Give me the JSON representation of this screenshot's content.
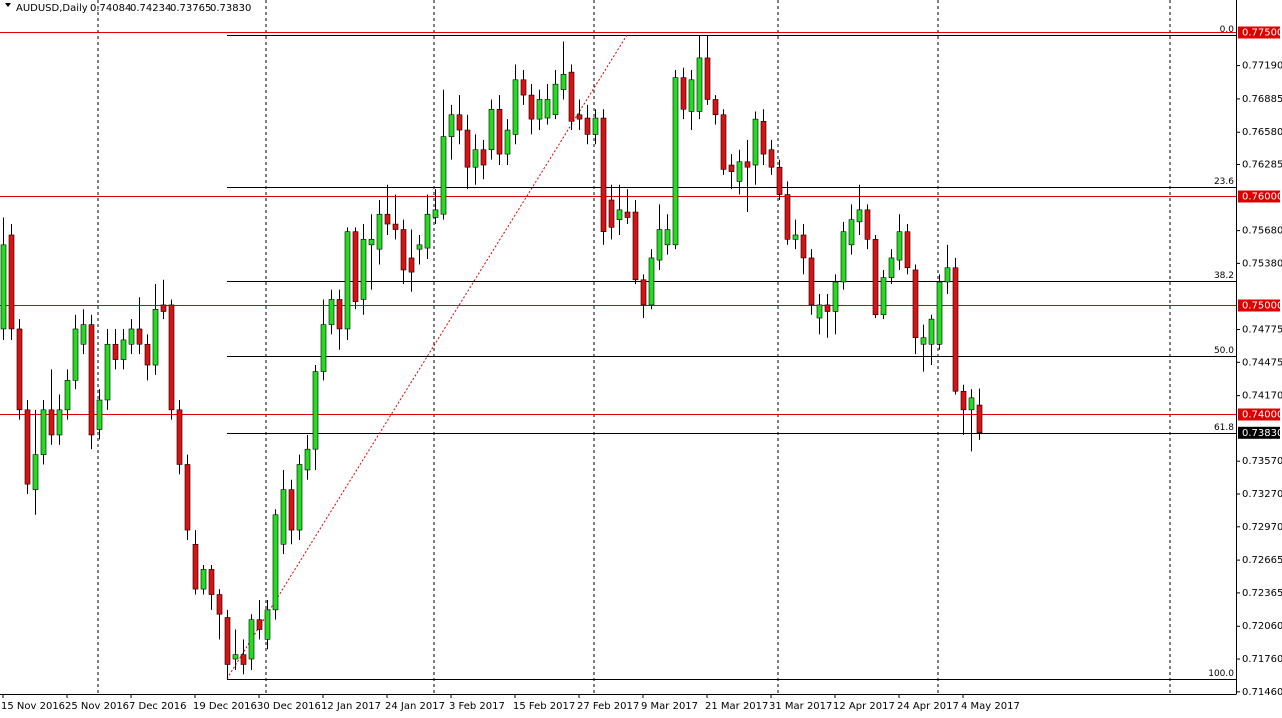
{
  "chart_data": {
    "type": "candlestick",
    "header": {
      "symbol": "AUDUSD,Daily",
      "ohlc": [
        "0.74084",
        "0.74234",
        "0.73765",
        "0.73830"
      ]
    },
    "categories": [
      "15 Nov 2016",
      null,
      null,
      null,
      null,
      null,
      null,
      null,
      "25 Nov 2016",
      null,
      null,
      null,
      null,
      null,
      null,
      null,
      "7 Dec 2016",
      null,
      null,
      null,
      null,
      null,
      null,
      null,
      "19 Dec 2016",
      null,
      null,
      null,
      null,
      null,
      null,
      null,
      "30 Dec 2016",
      null,
      null,
      null,
      null,
      null,
      null,
      null,
      "12 Jan 2017",
      null,
      null,
      null,
      null,
      null,
      null,
      null,
      "24 Jan 2017",
      null,
      null,
      null,
      null,
      null,
      null,
      null,
      "3 Feb 2017",
      null,
      null,
      null,
      null,
      null,
      null,
      null,
      "15 Feb 2017",
      null,
      null,
      null,
      null,
      null,
      null,
      null,
      "27 Feb 2017",
      null,
      null,
      null,
      null,
      null,
      null,
      null,
      "9 Mar 2017",
      null,
      null,
      null,
      null,
      null,
      null,
      null,
      "21 Mar 2017",
      null,
      null,
      null,
      null,
      null,
      null,
      null,
      "31 Mar 2017",
      null,
      null,
      null,
      null,
      null,
      null,
      null,
      "12 Apr 2017",
      null,
      null,
      null,
      null,
      null,
      null,
      null,
      "24 Apr 2017",
      null,
      null,
      null,
      null,
      null,
      null,
      null,
      "4 May 2017",
      null,
      null
    ],
    "open": [
      0.7478,
      0.7564,
      0.7478,
      0.7404,
      0.7331,
      0.7363,
      0.7404,
      0.7381,
      0.7404,
      0.7431,
      0.7464,
      0.7482,
      0.7386,
      0.7413,
      0.7464,
      0.745,
      0.7464,
      0.7478,
      0.7464,
      0.7445,
      0.75,
      0.75,
      0.7404,
      0.7354,
      0.7281,
      0.724,
      0.7258,
      0.7235,
      0.7214,
      0.7176,
      0.718,
      0.7176,
      0.7212,
      0.7194,
      0.7221,
      0.7281,
      0.7331,
      0.7294,
      0.7349,
      0.7368,
      0.7439,
      0.7482,
      0.7505,
      0.7478,
      0.7567,
      0.7505,
      0.7555,
      0.7551,
      0.7583,
      0.7574,
      0.7569,
      0.7543,
      0.7551,
      0.7552,
      0.758,
      0.7583,
      0.7654,
      0.7674,
      0.766,
      0.7626,
      0.7642,
      0.7642,
      0.7679,
      0.7638,
      0.7656,
      0.7706,
      0.7692,
      0.767,
      0.7671,
      0.7674,
      0.7697,
      0.7713,
      0.7674,
      0.7671,
      0.7656,
      0.7671,
      0.7596,
      0.7578,
      0.7585,
      0.7585,
      0.7523,
      0.75,
      0.7541,
      0.7555,
      0.7555,
      0.7708,
      0.7677,
      0.7677,
      0.7726,
      0.7688,
      0.7674,
      0.7628,
      0.7613,
      0.7631,
      0.7628,
      0.7668,
      0.7642,
      0.7626,
      0.7601,
      0.756,
      0.7564,
      0.7543,
      0.7488,
      0.75,
      0.7494,
      0.7521,
      0.7555,
      0.7576,
      0.7587,
      0.756,
      0.7491,
      0.7525,
      0.7541,
      0.7567,
      0.7532,
      0.7464,
      0.7464,
      0.7464,
      0.7521,
      0.7534,
      0.7421,
      0.7404,
      0.74084
    ],
    "high": [
      0.758,
      0.7574,
      0.7487,
      0.7413,
      0.7404,
      0.7413,
      0.7441,
      0.7418,
      0.7441,
      0.7491,
      0.7496,
      0.7491,
      0.7423,
      0.7478,
      0.7478,
      0.7478,
      0.7487,
      0.7507,
      0.7473,
      0.7519,
      0.7523,
      0.7505,
      0.7413,
      0.7363,
      0.7294,
      0.7262,
      0.7262,
      0.724,
      0.7221,
      0.7203,
      0.7194,
      0.7217,
      0.723,
      0.723,
      0.7313,
      0.7349,
      0.734,
      0.7363,
      0.7381,
      0.7445,
      0.7505,
      0.7514,
      0.7514,
      0.7571,
      0.7571,
      0.7574,
      0.7583,
      0.7596,
      0.761,
      0.7601,
      0.7578,
      0.7569,
      0.7564,
      0.7601,
      0.7606,
      0.7697,
      0.7683,
      0.7692,
      0.7674,
      0.7656,
      0.7651,
      0.7688,
      0.7692,
      0.767,
      0.772,
      0.7715,
      0.7702,
      0.7697,
      0.7702,
      0.7715,
      0.7741,
      0.772,
      0.7688,
      0.7683,
      0.7679,
      0.7679,
      0.761,
      0.761,
      0.7606,
      0.7596,
      0.7528,
      0.7551,
      0.7592,
      0.7583,
      0.7715,
      0.7717,
      0.7715,
      0.7747,
      0.7747,
      0.7692,
      0.7679,
      0.7638,
      0.7642,
      0.7651,
      0.7677,
      0.7679,
      0.7651,
      0.7633,
      0.7613,
      0.7578,
      0.7574,
      0.7551,
      0.751,
      0.751,
      0.7528,
      0.7576,
      0.7592,
      0.761,
      0.7592,
      0.7564,
      0.7532,
      0.7551,
      0.7583,
      0.7574,
      0.7537,
      0.7482,
      0.7491,
      0.7528,
      0.7555,
      0.7543,
      0.7427,
      0.7423,
      0.74234
    ],
    "low": [
      0.7468,
      0.7468,
      0.7395,
      0.7327,
      0.7308,
      0.7354,
      0.7372,
      0.7372,
      0.7395,
      0.7423,
      0.7455,
      0.7368,
      0.7377,
      0.7404,
      0.7441,
      0.7441,
      0.7455,
      0.7455,
      0.7431,
      0.7436,
      0.7487,
      0.7395,
      0.7345,
      0.7285,
      0.7235,
      0.7235,
      0.7221,
      0.7194,
      0.7158,
      0.7166,
      0.7162,
      0.7166,
      0.7194,
      0.7185,
      0.7212,
      0.7272,
      0.7281,
      0.7285,
      0.734,
      0.7349,
      0.7431,
      0.7473,
      0.7459,
      0.7468,
      0.7496,
      0.7491,
      0.7514,
      0.7537,
      0.7564,
      0.756,
      0.7519,
      0.7512,
      0.7537,
      0.7542,
      0.7574,
      0.7578,
      0.7633,
      0.7647,
      0.7606,
      0.761,
      0.7615,
      0.7633,
      0.7628,
      0.7628,
      0.7647,
      0.7683,
      0.7656,
      0.766,
      0.7665,
      0.767,
      0.7688,
      0.766,
      0.766,
      0.7647,
      0.7647,
      0.7555,
      0.756,
      0.7564,
      0.7574,
      0.7519,
      0.7488,
      0.7496,
      0.7532,
      0.7546,
      0.7551,
      0.767,
      0.766,
      0.767,
      0.7683,
      0.7665,
      0.7619,
      0.7606,
      0.7601,
      0.7585,
      0.761,
      0.7628,
      0.7619,
      0.7596,
      0.7555,
      0.7551,
      0.7528,
      0.7491,
      0.7473,
      0.747,
      0.7473,
      0.7514,
      0.7546,
      0.7564,
      0.7551,
      0.7488,
      0.7487,
      0.7519,
      0.7532,
      0.7528,
      0.7455,
      0.7439,
      0.7445,
      0.7459,
      0.751,
      0.7418,
      0.7381,
      0.7366,
      0.73765
    ],
    "close": [
      0.7555,
      0.7478,
      0.7404,
      0.7336,
      0.7363,
      0.7404,
      0.7381,
      0.7404,
      0.7431,
      0.7478,
      0.7482,
      0.7381,
      0.7413,
      0.7464,
      0.745,
      0.7468,
      0.7478,
      0.7464,
      0.7445,
      0.7496,
      0.7494,
      0.7404,
      0.7354,
      0.7294,
      0.724,
      0.7258,
      0.7235,
      0.7217,
      0.7171,
      0.718,
      0.7171,
      0.7212,
      0.7203,
      0.7221,
      0.7308,
      0.7331,
      0.7294,
      0.7354,
      0.7368,
      0.7439,
      0.7482,
      0.7505,
      0.7478,
      0.7567,
      0.7503,
      0.756,
      0.756,
      0.7583,
      0.7574,
      0.7569,
      0.7532,
      0.753,
      0.7555,
      0.7583,
      0.7587,
      0.7654,
      0.7674,
      0.766,
      0.7626,
      0.7642,
      0.7628,
      0.7679,
      0.7638,
      0.766,
      0.7706,
      0.7692,
      0.767,
      0.7688,
      0.7688,
      0.7702,
      0.7711,
      0.7668,
      0.767,
      0.7656,
      0.7671,
      0.7567,
      0.7571,
      0.7587,
      0.758,
      0.7523,
      0.75,
      0.7543,
      0.7569,
      0.7569,
      0.7708,
      0.7679,
      0.7706,
      0.7726,
      0.7688,
      0.7674,
      0.7624,
      0.7622,
      0.7631,
      0.7626,
      0.767,
      0.7638,
      0.7626,
      0.7601,
      0.756,
      0.7564,
      0.7543,
      0.75,
      0.75,
      0.7494,
      0.7521,
      0.7567,
      0.7578,
      0.7587,
      0.756,
      0.7491,
      0.7525,
      0.7543,
      0.7567,
      0.7534,
      0.747,
      0.747,
      0.7487,
      0.7521,
      0.7534,
      0.7421,
      0.7404,
      0.7415,
      0.7383
    ],
    "colors": {
      "up": "#22dd22",
      "down": "#dd1111",
      "wick": "#000000"
    },
    "ylim": [
      0.7144,
      0.7779
    ],
    "yticks": [
      {
        "value": 0.7719,
        "label": "0.77190"
      },
      {
        "value": 0.76885,
        "label": "0.76885"
      },
      {
        "value": 0.7658,
        "label": "0.76580"
      },
      {
        "value": 0.76285,
        "label": "0.76285"
      },
      {
        "value": 0.7568,
        "label": "0.75680"
      },
      {
        "value": 0.7538,
        "label": "0.75380"
      },
      {
        "value": 0.74775,
        "label": "0.74775"
      },
      {
        "value": 0.74475,
        "label": "0.74475"
      },
      {
        "value": 0.7417,
        "label": "0.74170"
      },
      {
        "value": 0.7357,
        "label": "0.73570"
      },
      {
        "value": 0.7327,
        "label": "0.73270"
      },
      {
        "value": 0.7297,
        "label": "0.72970"
      },
      {
        "value": 0.72665,
        "label": "0.72665"
      },
      {
        "value": 0.72365,
        "label": "0.72365"
      },
      {
        "value": 0.7206,
        "label": "0.72060"
      },
      {
        "value": 0.7176,
        "label": "0.71760"
      },
      {
        "value": 0.7146,
        "label": "0.71460"
      }
    ],
    "levels": [
      {
        "value": 0.775,
        "label": "0.77500"
      },
      {
        "value": 0.76,
        "label": "0.76000"
      },
      {
        "value": 0.75,
        "label": "0.75000"
      },
      {
        "value": 0.74,
        "label": "0.74000"
      }
    ],
    "level_color": "#dd0000",
    "price_marker": {
      "value": 0.7383,
      "label": "0.73830"
    },
    "fibo": [
      {
        "value": 0.7747,
        "label": "0.0"
      },
      {
        "value": 0.7608,
        "label": "23.6"
      },
      {
        "value": 0.7522,
        "label": "38.2"
      },
      {
        "value": 0.7453,
        "label": "50.0"
      },
      {
        "value": 0.7383,
        "label": "61.8"
      },
      {
        "value": 0.7158,
        "label": "100.0"
      }
    ],
    "trendline": {
      "x": [
        28,
        78
      ],
      "y": [
        0.7158,
        0.7747
      ],
      "color": "#dd0000"
    }
  }
}
